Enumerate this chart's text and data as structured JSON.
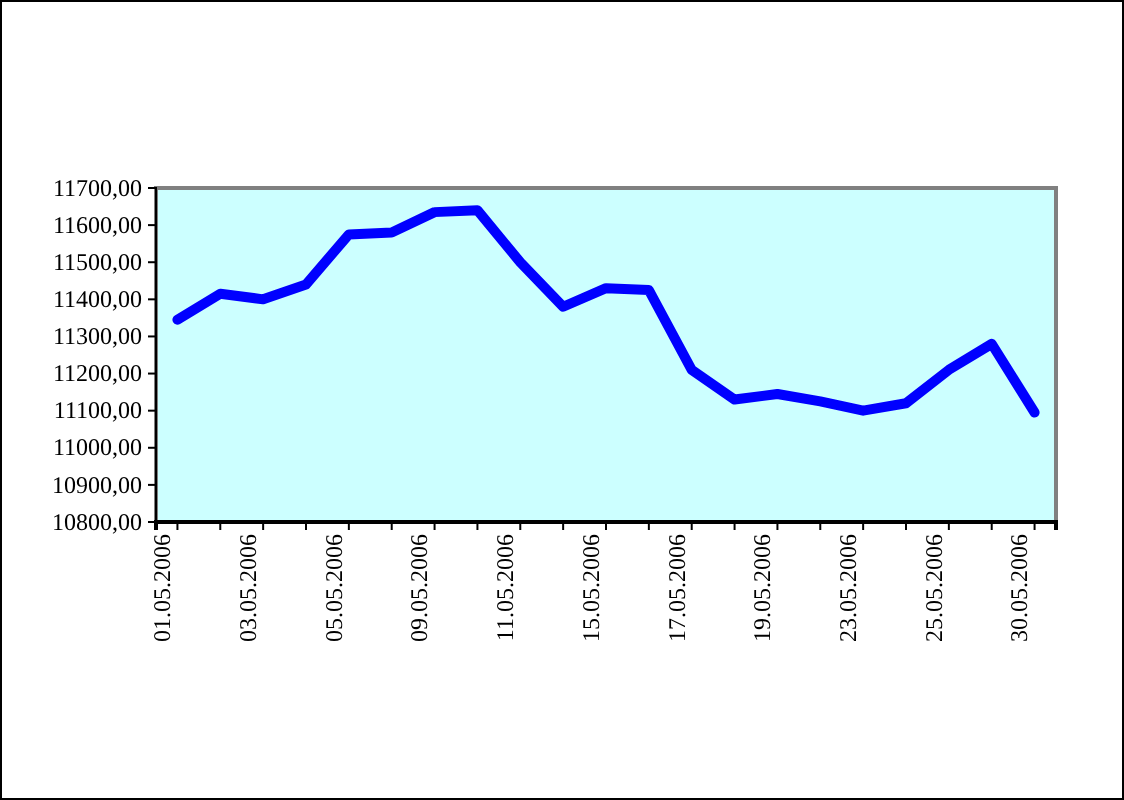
{
  "chart_data": {
    "type": "line",
    "categories": [
      "01.05.2006",
      null,
      "03.05.2006",
      null,
      "05.05.2006",
      null,
      "09.05.2006",
      null,
      "11.05.2006",
      null,
      "15.05.2006",
      null,
      "17.05.2006",
      null,
      "19.05.2006",
      null,
      "23.05.2006",
      null,
      "25.05.2006",
      null,
      "30.05.2006"
    ],
    "series": [
      {
        "color": "#0000ff",
        "values": [
          11345,
          11415,
          11400,
          11440,
          11575,
          11580,
          11635,
          11640,
          11500,
          11380,
          11430,
          11425,
          11210,
          11130,
          11145,
          11125,
          11100,
          11120,
          11210,
          11280,
          11095
        ]
      }
    ],
    "ylim": [
      10800,
      11700
    ],
    "yticks": [
      {
        "value": 10800,
        "label": "10800,00"
      },
      {
        "value": 10900,
        "label": "10900,00"
      },
      {
        "value": 11000,
        "label": "11000,00"
      },
      {
        "value": 11100,
        "label": "11100,00"
      },
      {
        "value": 11200,
        "label": "11200,00"
      },
      {
        "value": 11300,
        "label": "11300,00"
      },
      {
        "value": 11400,
        "label": "11400,00"
      },
      {
        "value": 11500,
        "label": "11500,00"
      },
      {
        "value": 11600,
        "label": "11600,00"
      },
      {
        "value": 11700,
        "label": "11700,00"
      }
    ],
    "grid": false,
    "marker": "none",
    "line_style": "solid",
    "legend": false
  }
}
